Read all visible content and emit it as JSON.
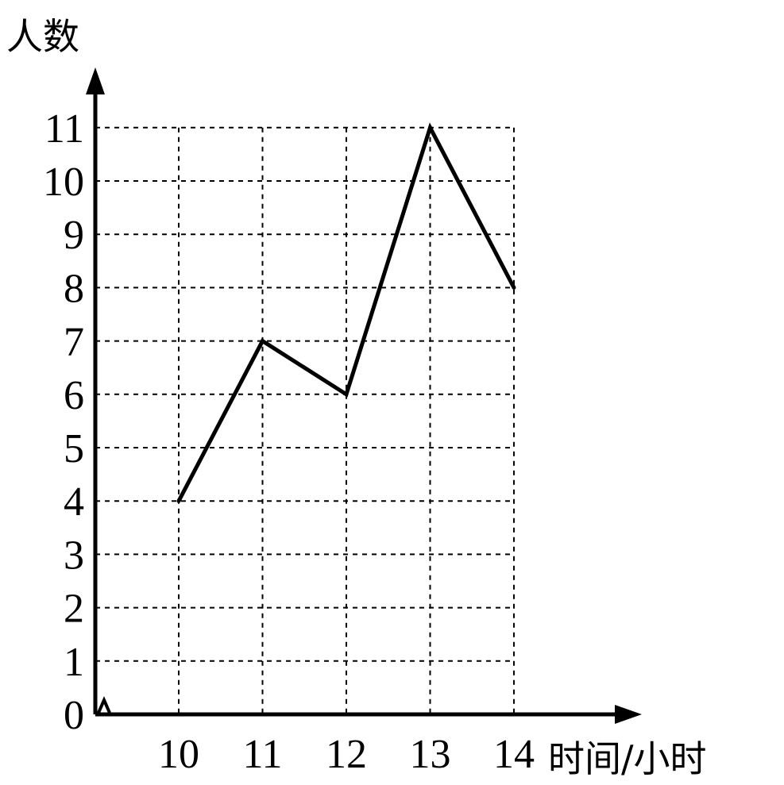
{
  "chart_data": {
    "type": "line",
    "title": "",
    "xlabel": "时间/小时",
    "ylabel": "人数",
    "categories": [
      "10",
      "11",
      "12",
      "13",
      "14"
    ],
    "x_origin_label": "",
    "y_ticks": [
      "0",
      "1",
      "2",
      "3",
      "4",
      "5",
      "6",
      "7",
      "8",
      "9",
      "10",
      "11"
    ],
    "ylim": [
      0,
      11
    ],
    "grid": true,
    "grid_style": "dashed",
    "axis_break_on_x": true,
    "series": [
      {
        "values": [
          4,
          7,
          6,
          11,
          8
        ]
      }
    ],
    "colors": {
      "line": "#000000",
      "grid": "#000000",
      "background": "#ffffff"
    }
  }
}
